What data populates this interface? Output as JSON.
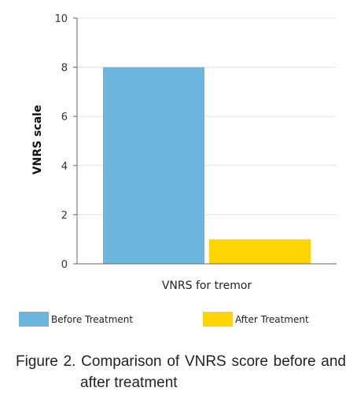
{
  "chart_data": {
    "type": "bar",
    "categories": [
      "VNRS for tremor"
    ],
    "series": [
      {
        "name": "Before Treatment",
        "values": [
          8
        ],
        "color": "#6bb6dd"
      },
      {
        "name": "After Treatment",
        "values": [
          1
        ],
        "color": "#ffd400"
      }
    ],
    "ylabel": "VNRS scale",
    "xlabel": "",
    "ylim": [
      0,
      10
    ],
    "yticks": [
      0,
      2,
      4,
      6,
      8,
      10
    ],
    "grid": true,
    "legend_position": "bottom"
  },
  "caption": {
    "line1": "Figure 2. Comparison of VNRS score before and",
    "line2": "after treatment"
  }
}
